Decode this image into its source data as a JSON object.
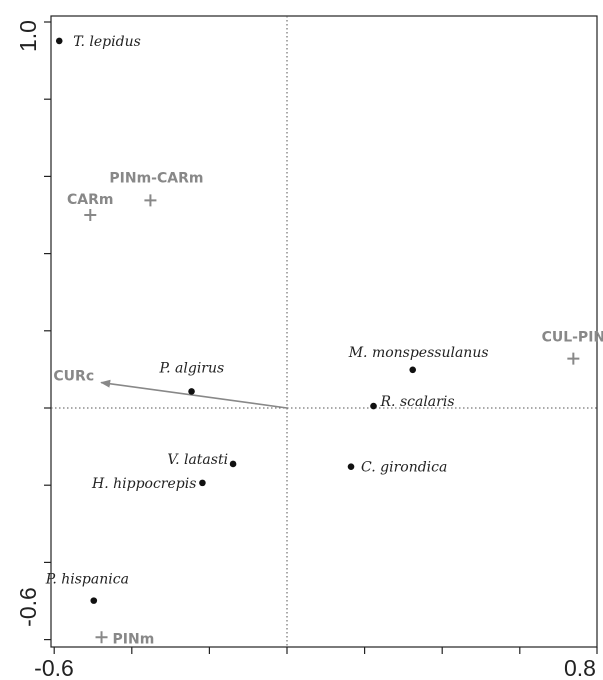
{
  "chart_data": {
    "type": "scatter",
    "title": "",
    "xlabel": "",
    "ylabel": "",
    "xlim": [
      -0.6,
      0.8
    ],
    "ylim": [
      -0.6,
      1.0
    ],
    "x_tick_labels": [
      "-0.6",
      "0.8"
    ],
    "y_tick_labels": [
      "-0.6",
      "1.0"
    ],
    "reference_lines": {
      "x": 0,
      "y": 0,
      "style": "dotted"
    },
    "grid": false,
    "species": [
      {
        "name": "T. lepidus",
        "x": -0.587,
        "y": 0.951
      },
      {
        "name": "P. algirus",
        "x": -0.246,
        "y": 0.043
      },
      {
        "name": "M. monspessulanus",
        "x": 0.324,
        "y": 0.099
      },
      {
        "name": "R. scalaris",
        "x": 0.223,
        "y": 0.005
      },
      {
        "name": "V. latasti",
        "x": -0.139,
        "y": -0.145
      },
      {
        "name": "H. hippocrepis",
        "x": -0.218,
        "y": -0.194
      },
      {
        "name": "C. girondica",
        "x": 0.165,
        "y": -0.152
      },
      {
        "name": "P. hispanica",
        "x": -0.498,
        "y": -0.499
      }
    ],
    "sites": [
      {
        "name": "PINm-CARm",
        "x": -0.352,
        "y": 0.538
      },
      {
        "name": "CARm",
        "x": -0.507,
        "y": 0.5
      },
      {
        "name": "CUL-PIN",
        "x": 0.738,
        "y": 0.128
      },
      {
        "name": "PINm",
        "x": -0.478,
        "y": -0.594
      }
    ],
    "arrows": [
      {
        "name": "CURc",
        "x": -0.479,
        "y": 0.066
      }
    ]
  }
}
